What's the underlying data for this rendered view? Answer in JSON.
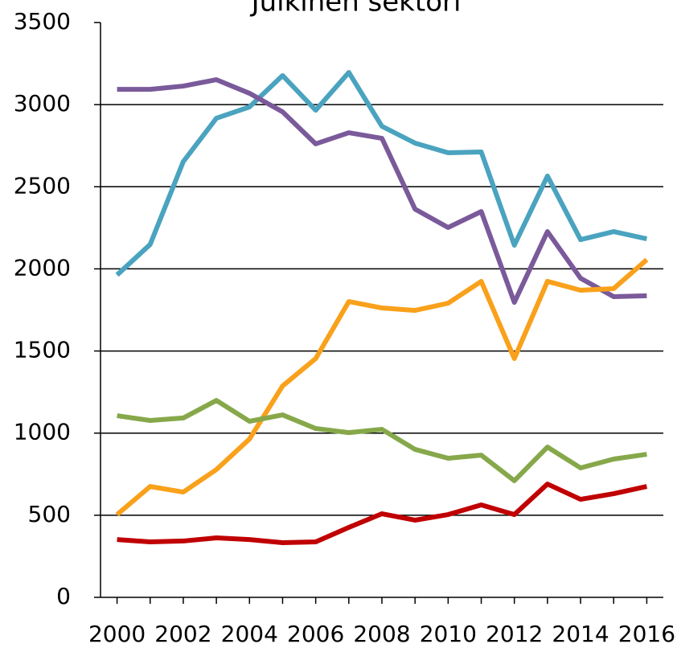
{
  "chart_data": {
    "type": "line",
    "title": "Julkinen sektori",
    "categories": [
      2000,
      null,
      2002,
      null,
      2004,
      null,
      2006,
      null,
      2008,
      null,
      2010,
      null,
      2012,
      null,
      2014,
      null,
      2016
    ],
    "series": [
      {
        "color": "#4aa3bf",
        "values": [
          1963,
          2149,
          2653,
          2917,
          2986,
          3177,
          2966,
          3196,
          2868,
          2766,
          2707,
          2712,
          2144,
          2565,
          2178,
          2227,
          2183
        ]
      },
      {
        "color": "#7a5a9a",
        "values": [
          3093,
          3093,
          3113,
          3152,
          3069,
          2956,
          2761,
          2829,
          2795,
          2364,
          2252,
          2349,
          1796,
          2227,
          1943,
          1831,
          1836
        ]
      },
      {
        "color": "#f9a11b",
        "values": [
          504,
          675,
          641,
          778,
          964,
          1287,
          1454,
          1801,
          1762,
          1747,
          1791,
          1924,
          1454,
          1924,
          1870,
          1880,
          2056
        ]
      },
      {
        "color": "#86a84a",
        "values": [
          1106,
          1077,
          1092,
          1199,
          1072,
          1111,
          1028,
          1003,
          1023,
          901,
          847,
          866,
          710,
          915,
          788,
          842,
          871
        ]
      },
      {
        "color": "#c00000",
        "values": [
          352,
          338,
          343,
          362,
          352,
          333,
          338,
          426,
          509,
          470,
          504,
          563,
          504,
          690,
          597,
          631,
          675
        ]
      }
    ],
    "ylim": [
      0,
      3500
    ],
    "yticks": [
      0,
      500,
      1000,
      1500,
      2000,
      2500,
      3000,
      3500
    ],
    "grid": true
  }
}
